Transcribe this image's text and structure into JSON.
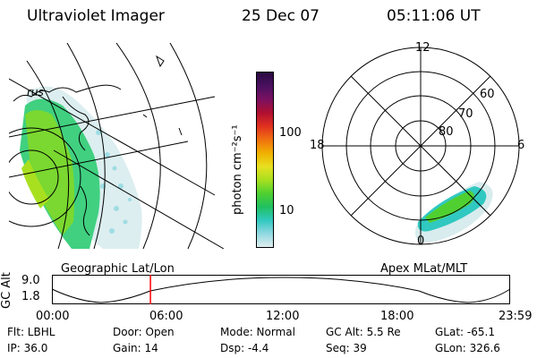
{
  "header": {
    "title": "Ultraviolet Imager",
    "date": "25 Dec 07",
    "time": "05:11:06 UT"
  },
  "colorbar": {
    "label": "photon cm⁻²s⁻¹",
    "ticks": [
      "100",
      "10"
    ],
    "scale": "log",
    "colors": [
      "#2a0a40",
      "#4a1060",
      "#7a1060",
      "#b01030",
      "#e03020",
      "#f07010",
      "#f0b000",
      "#e8e020",
      "#a8e020",
      "#50d030",
      "#20c060",
      "#30c8c0",
      "#90d8e0",
      "#e0eef0"
    ]
  },
  "polar_plot": {
    "labels": {
      "top": "12",
      "left": "18",
      "right": "6",
      "bottom": "0",
      "rings": [
        "60",
        "70",
        "80"
      ]
    },
    "caption": "Apex MLat/MLT"
  },
  "geo_map": {
    "caption": "Geographic Lat/Lon",
    "landmark_label": "rus"
  },
  "timeline": {
    "ylabel": "GC Alt",
    "yticks": [
      "9.0",
      "1.8"
    ],
    "xticks": [
      "00:00",
      "06:00",
      "12:00",
      "18:00",
      "23:59"
    ],
    "cursor_fraction": 0.215,
    "cursor_color": "#ff0000"
  },
  "info": {
    "flt": "Flt: LBHL",
    "ip": "IP: 36.0",
    "door": "Door: Open",
    "gain": "Gain: 14",
    "mode": "Mode: Normal",
    "dsp": "Dsp:   -4.4",
    "gc_alt": "GC Alt: 5.5 Re",
    "seq": "Seq: 39",
    "glat": "GLat: -65.1",
    "glon": "GLon: 326.6"
  }
}
